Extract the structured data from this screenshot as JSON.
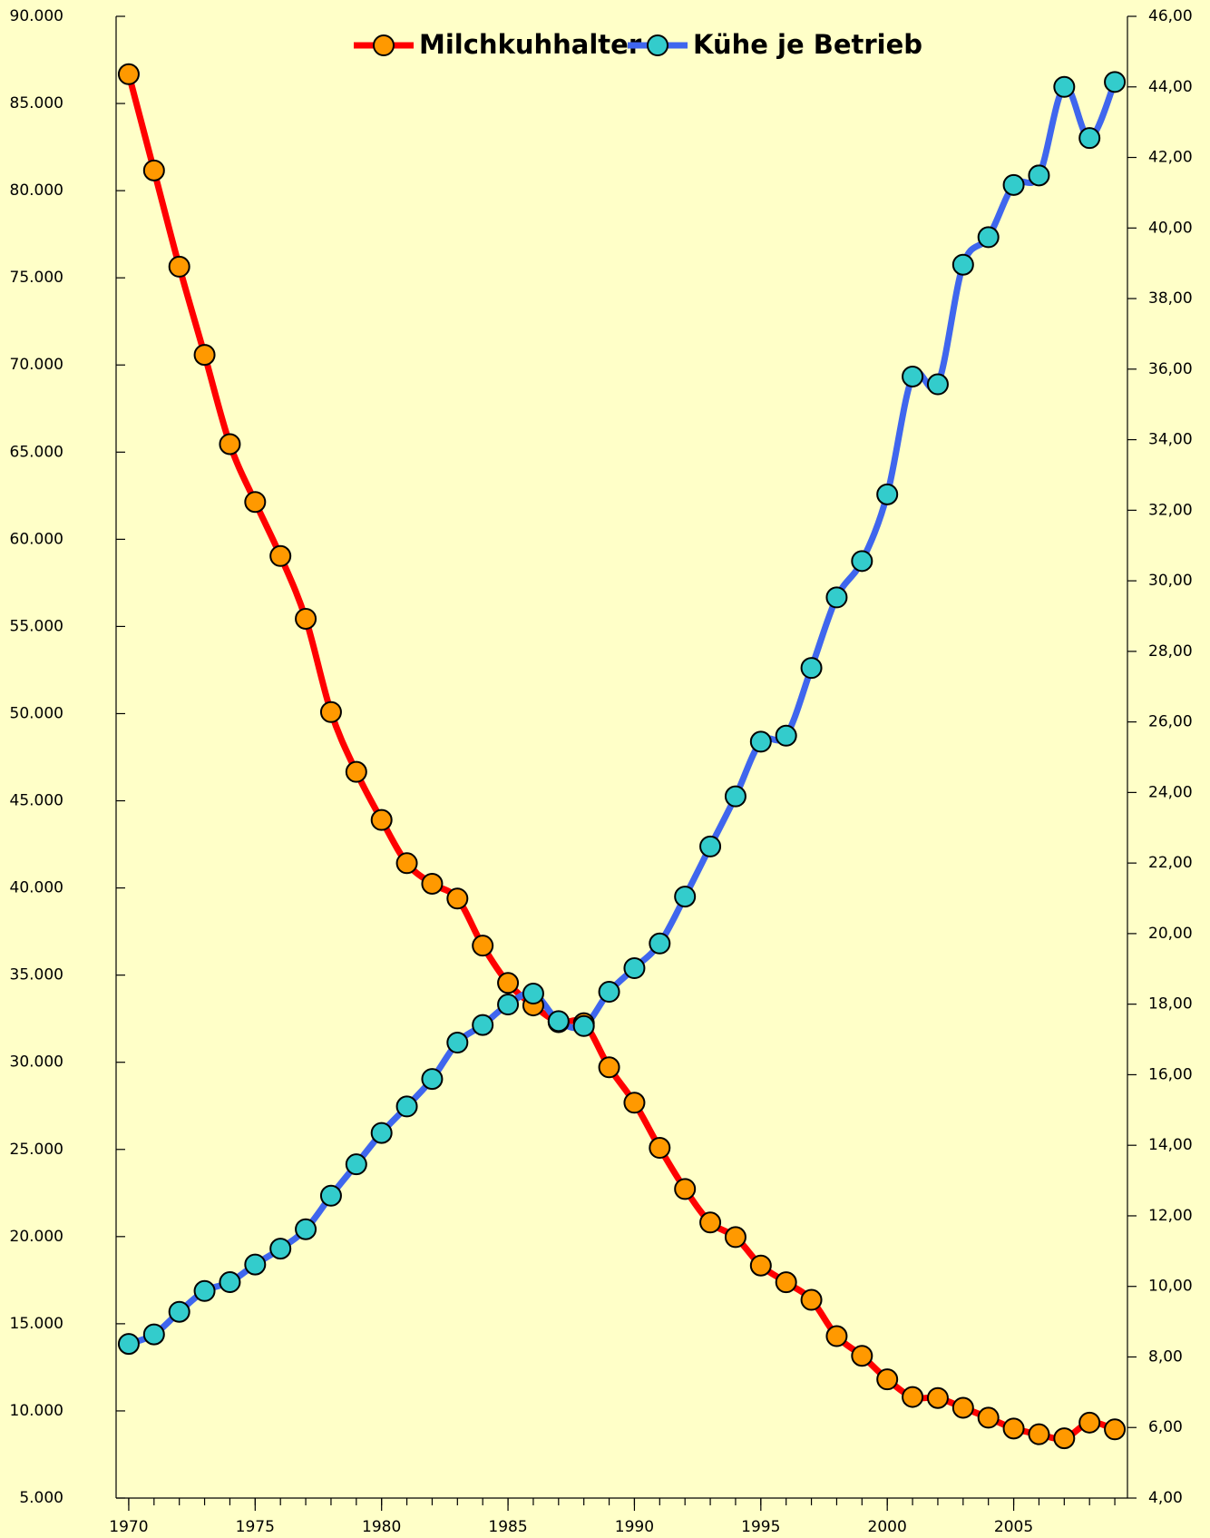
{
  "chart_data": {
    "type": "line",
    "x": [
      1970,
      1971,
      1972,
      1973,
      1974,
      1975,
      1976,
      1977,
      1978,
      1979,
      1980,
      1981,
      1982,
      1983,
      1984,
      1985,
      1986,
      1987,
      1988,
      1989,
      1990,
      1991,
      1992,
      1993,
      1994,
      1995,
      1996,
      1997,
      1998,
      1999,
      2000,
      2001,
      2002,
      2003,
      2004,
      2005,
      2006,
      2007,
      2008,
      2009
    ],
    "series": [
      {
        "name": "Milchkuhhalter",
        "color": "#ff0000",
        "marker_color": "#ff9900",
        "values": [
          86680,
          81160,
          75640,
          70580,
          65460,
          62140,
          59040,
          55440,
          50090,
          46660,
          43900,
          41420,
          40240,
          39390,
          36690,
          34550,
          33260,
          32300,
          32240,
          29710,
          27680,
          25090,
          22730,
          20810,
          19970,
          18340,
          17380,
          16370,
          14290,
          13160,
          11810,
          10800,
          10740,
          10180,
          9610,
          8990,
          8660,
          8430,
          9330,
          8940
        ]
      },
      {
        "name": "Kühe je Betrieb",
        "color": "#3f66ee",
        "marker_color": "#33cccc",
        "axis": "y2",
        "values": [
          8.37,
          8.64,
          9.28,
          9.87,
          10.12,
          10.62,
          11.07,
          11.62,
          12.57,
          13.46,
          14.35,
          15.1,
          15.88,
          16.91,
          17.41,
          17.99,
          18.3,
          17.52,
          17.38,
          18.35,
          19.02,
          19.72,
          21.05,
          22.47,
          23.89,
          25.44,
          25.61,
          27.53,
          29.53,
          30.56,
          32.45,
          35.79,
          35.57,
          38.96,
          39.74,
          41.22,
          41.49,
          44.0,
          42.55,
          44.14
        ]
      }
    ],
    "xlim": [
      1969.5,
      2009.5
    ],
    "xticks": [
      1970,
      1975,
      1980,
      1985,
      1990,
      1995,
      2000,
      2005
    ],
    "ylim": [
      5000,
      90000
    ],
    "yticks": [
      {
        "value": 5000,
        "label": "5.000"
      },
      {
        "value": 10000,
        "label": "10.000"
      },
      {
        "value": 15000,
        "label": "15.000"
      },
      {
        "value": 20000,
        "label": "20.000"
      },
      {
        "value": 25000,
        "label": "25.000"
      },
      {
        "value": 30000,
        "label": "30.000"
      },
      {
        "value": 35000,
        "label": "35.000"
      },
      {
        "value": 40000,
        "label": "40.000"
      },
      {
        "value": 45000,
        "label": "45.000"
      },
      {
        "value": 50000,
        "label": "50.000"
      },
      {
        "value": 55000,
        "label": "55.000"
      },
      {
        "value": 60000,
        "label": "60.000"
      },
      {
        "value": 65000,
        "label": "65.000"
      },
      {
        "value": 70000,
        "label": "70.000"
      },
      {
        "value": 75000,
        "label": "75.000"
      },
      {
        "value": 80000,
        "label": "80.000"
      },
      {
        "value": 85000,
        "label": "85.000"
      },
      {
        "value": 90000,
        "label": "90.000"
      }
    ],
    "y2lim": [
      4,
      46
    ],
    "y2ticks": [
      {
        "value": 4,
        "label": "4,00"
      },
      {
        "value": 6,
        "label": "6,00"
      },
      {
        "value": 8,
        "label": "8,00"
      },
      {
        "value": 10,
        "label": "10,00"
      },
      {
        "value": 12,
        "label": "12,00"
      },
      {
        "value": 14,
        "label": "14,00"
      },
      {
        "value": 16,
        "label": "16,00"
      },
      {
        "value": 18,
        "label": "18,00"
      },
      {
        "value": 20,
        "label": "20,00"
      },
      {
        "value": 22,
        "label": "22,00"
      },
      {
        "value": 24,
        "label": "24,00"
      },
      {
        "value": 26,
        "label": "26,00"
      },
      {
        "value": 28,
        "label": "28,00"
      },
      {
        "value": 30,
        "label": "30,00"
      },
      {
        "value": 32,
        "label": "32,00"
      },
      {
        "value": 34,
        "label": "34,00"
      },
      {
        "value": 36,
        "label": "36,00"
      },
      {
        "value": 38,
        "label": "38,00"
      },
      {
        "value": 40,
        "label": "40,00"
      },
      {
        "value": 42,
        "label": "42,00"
      },
      {
        "value": 44,
        "label": "44,00"
      },
      {
        "value": 46,
        "label": "46,00"
      }
    ],
    "legend": "top"
  }
}
